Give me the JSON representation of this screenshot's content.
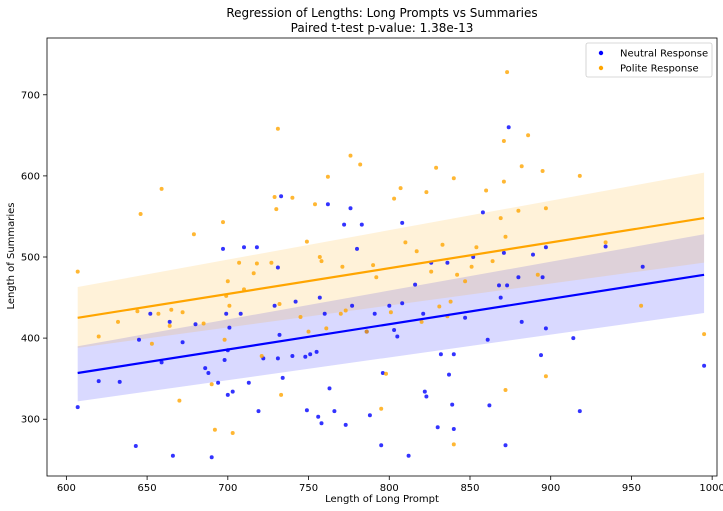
{
  "chart_data": {
    "type": "scatter",
    "title": "Regression of Lengths: Long Prompts vs Summaries",
    "subtitle": "Paired t-test p-value: 1.38e-13",
    "xlabel": "Length of Long Prompt",
    "ylabel": "Length of Summaries",
    "xlim": [
      588,
      1003
    ],
    "ylim": [
      230,
      770
    ],
    "xticks": [
      600,
      650,
      700,
      750,
      800,
      850,
      900,
      950,
      1000
    ],
    "yticks": [
      300,
      400,
      500,
      600,
      700
    ],
    "grid": false,
    "legend_position": "top-right",
    "series": [
      {
        "name": "Neutral Response",
        "color": "#0000ff",
        "regression": {
          "x": [
            607,
            995
          ],
          "y": [
            357,
            478
          ]
        },
        "ci_lower": [
          322,
          431
        ],
        "ci_upper": [
          390,
          528
        ],
        "points": [
          [
            607,
            315
          ],
          [
            620,
            347
          ],
          [
            633,
            346
          ],
          [
            643,
            267
          ],
          [
            645,
            398
          ],
          [
            652,
            430
          ],
          [
            659,
            370
          ],
          [
            664,
            420
          ],
          [
            666,
            255
          ],
          [
            672,
            395
          ],
          [
            680,
            417
          ],
          [
            686,
            363
          ],
          [
            688,
            357
          ],
          [
            690,
            253
          ],
          [
            694,
            345
          ],
          [
            697,
            510
          ],
          [
            698,
            373
          ],
          [
            699,
            430
          ],
          [
            700,
            385
          ],
          [
            700,
            330
          ],
          [
            701,
            413
          ],
          [
            703,
            334
          ],
          [
            708,
            430
          ],
          [
            710,
            512
          ],
          [
            713,
            345
          ],
          [
            718,
            512
          ],
          [
            719,
            310
          ],
          [
            722,
            375
          ],
          [
            729,
            440
          ],
          [
            731,
            375
          ],
          [
            731,
            487
          ],
          [
            732,
            404
          ],
          [
            733,
            575
          ],
          [
            734,
            351
          ],
          [
            740,
            378
          ],
          [
            742,
            445
          ],
          [
            748,
            377
          ],
          [
            749,
            311
          ],
          [
            751,
            380
          ],
          [
            755,
            383
          ],
          [
            756,
            303
          ],
          [
            757,
            450
          ],
          [
            758,
            295
          ],
          [
            760,
            430
          ],
          [
            762,
            565
          ],
          [
            763,
            338
          ],
          [
            766,
            310
          ],
          [
            772,
            540
          ],
          [
            773,
            293
          ],
          [
            776,
            560
          ],
          [
            777,
            440
          ],
          [
            780,
            510
          ],
          [
            783,
            540
          ],
          [
            786,
            408
          ],
          [
            788,
            305
          ],
          [
            791,
            430
          ],
          [
            795,
            268
          ],
          [
            796,
            357
          ],
          [
            800,
            440
          ],
          [
            803,
            410
          ],
          [
            805,
            402
          ],
          [
            808,
            443
          ],
          [
            808,
            542
          ],
          [
            812,
            255
          ],
          [
            816,
            466
          ],
          [
            821,
            430
          ],
          [
            822,
            334
          ],
          [
            823,
            328
          ],
          [
            826,
            493
          ],
          [
            830,
            290
          ],
          [
            832,
            380
          ],
          [
            836,
            493
          ],
          [
            837,
            355
          ],
          [
            839,
            318
          ],
          [
            840,
            380
          ],
          [
            840,
            288
          ],
          [
            847,
            425
          ],
          [
            852,
            500
          ],
          [
            858,
            555
          ],
          [
            861,
            398
          ],
          [
            862,
            317
          ],
          [
            868,
            465
          ],
          [
            869,
            450
          ],
          [
            871,
            505
          ],
          [
            872,
            268
          ],
          [
            873,
            465
          ],
          [
            874,
            660
          ],
          [
            880,
            475
          ],
          [
            882,
            420
          ],
          [
            889,
            503
          ],
          [
            894,
            379
          ],
          [
            895,
            475
          ],
          [
            897,
            512
          ],
          [
            897,
            412
          ],
          [
            914,
            400
          ],
          [
            918,
            310
          ],
          [
            934,
            513
          ],
          [
            957,
            488
          ],
          [
            995,
            366
          ]
        ]
      },
      {
        "name": "Polite Response",
        "color": "#ffa500",
        "regression": {
          "x": [
            607,
            995
          ],
          "y": [
            425,
            548
          ]
        },
        "ci_lower": [
          388,
          493
        ],
        "ci_upper": [
          463,
          604
        ],
        "points": [
          [
            607,
            482
          ],
          [
            620,
            402
          ],
          [
            632,
            420
          ],
          [
            644,
            433
          ],
          [
            646,
            553
          ],
          [
            653,
            393
          ],
          [
            657,
            430
          ],
          [
            659,
            584
          ],
          [
            664,
            415
          ],
          [
            665,
            435
          ],
          [
            670,
            323
          ],
          [
            672,
            432
          ],
          [
            679,
            528
          ],
          [
            685,
            418
          ],
          [
            690,
            343
          ],
          [
            692,
            287
          ],
          [
            697,
            543
          ],
          [
            698,
            398
          ],
          [
            699,
            452
          ],
          [
            700,
            470
          ],
          [
            701,
            440
          ],
          [
            703,
            283
          ],
          [
            707,
            493
          ],
          [
            710,
            460
          ],
          [
            716,
            480
          ],
          [
            718,
            492
          ],
          [
            721,
            378
          ],
          [
            727,
            493
          ],
          [
            729,
            574
          ],
          [
            730,
            559
          ],
          [
            731,
            658
          ],
          [
            732,
            442
          ],
          [
            733,
            330
          ],
          [
            740,
            573
          ],
          [
            745,
            426
          ],
          [
            749,
            519
          ],
          [
            750,
            408
          ],
          [
            754,
            565
          ],
          [
            757,
            500
          ],
          [
            758,
            495
          ],
          [
            761,
            412
          ],
          [
            762,
            599
          ],
          [
            770,
            430
          ],
          [
            771,
            488
          ],
          [
            773,
            434
          ],
          [
            776,
            625
          ],
          [
            782,
            614
          ],
          [
            786,
            408
          ],
          [
            790,
            490
          ],
          [
            792,
            475
          ],
          [
            795,
            313
          ],
          [
            798,
            356
          ],
          [
            801,
            432
          ],
          [
            803,
            572
          ],
          [
            807,
            585
          ],
          [
            810,
            518
          ],
          [
            817,
            507
          ],
          [
            820,
            420
          ],
          [
            823,
            580
          ],
          [
            826,
            482
          ],
          [
            829,
            610
          ],
          [
            831,
            439
          ],
          [
            833,
            515
          ],
          [
            836,
            427
          ],
          [
            838,
            445
          ],
          [
            840,
            597
          ],
          [
            840,
            269
          ],
          [
            842,
            478
          ],
          [
            847,
            470
          ],
          [
            851,
            488
          ],
          [
            854,
            512
          ],
          [
            860,
            582
          ],
          [
            864,
            495
          ],
          [
            869,
            548
          ],
          [
            871,
            643
          ],
          [
            871,
            593
          ],
          [
            872,
            336
          ],
          [
            872,
            525
          ],
          [
            873,
            728
          ],
          [
            880,
            557
          ],
          [
            882,
            612
          ],
          [
            886,
            650
          ],
          [
            892,
            478
          ],
          [
            895,
            606
          ],
          [
            897,
            353
          ],
          [
            897,
            560
          ],
          [
            918,
            600
          ],
          [
            934,
            518
          ],
          [
            956,
            440
          ],
          [
            995,
            405
          ]
        ]
      }
    ]
  }
}
